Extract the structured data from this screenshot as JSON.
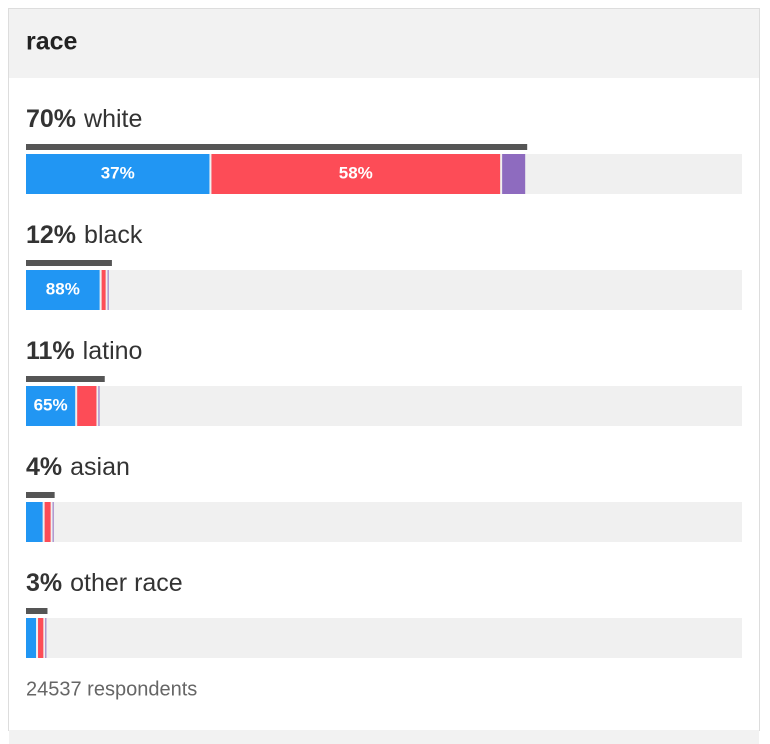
{
  "chart_data": {
    "type": "bar",
    "title": "race",
    "colors": [
      "#2196f3",
      "#fd4c57",
      "#8e6bbf"
    ],
    "groups": [
      {
        "label": "white",
        "share": 70,
        "share_label": "70%",
        "values": [
          37,
          58,
          5
        ],
        "value_labels": [
          "37%",
          "58%",
          null
        ]
      },
      {
        "label": "black",
        "share": 12,
        "share_label": "12%",
        "values": [
          88,
          7,
          2
        ],
        "value_labels": [
          "88%",
          null,
          null
        ]
      },
      {
        "label": "latino",
        "share": 11,
        "share_label": "11%",
        "values": [
          65,
          27,
          3
        ],
        "value_labels": [
          "65%",
          null,
          null
        ]
      },
      {
        "label": "asian",
        "share": 4,
        "share_label": "4%",
        "values": [
          65,
          28,
          4
        ],
        "value_labels": [
          null,
          null,
          null
        ]
      },
      {
        "label": "other race",
        "share": 3,
        "share_label": "3%",
        "values": [
          56,
          34,
          5
        ],
        "value_labels": [
          null,
          null,
          null
        ]
      }
    ],
    "footnote": "24537 respondents"
  }
}
